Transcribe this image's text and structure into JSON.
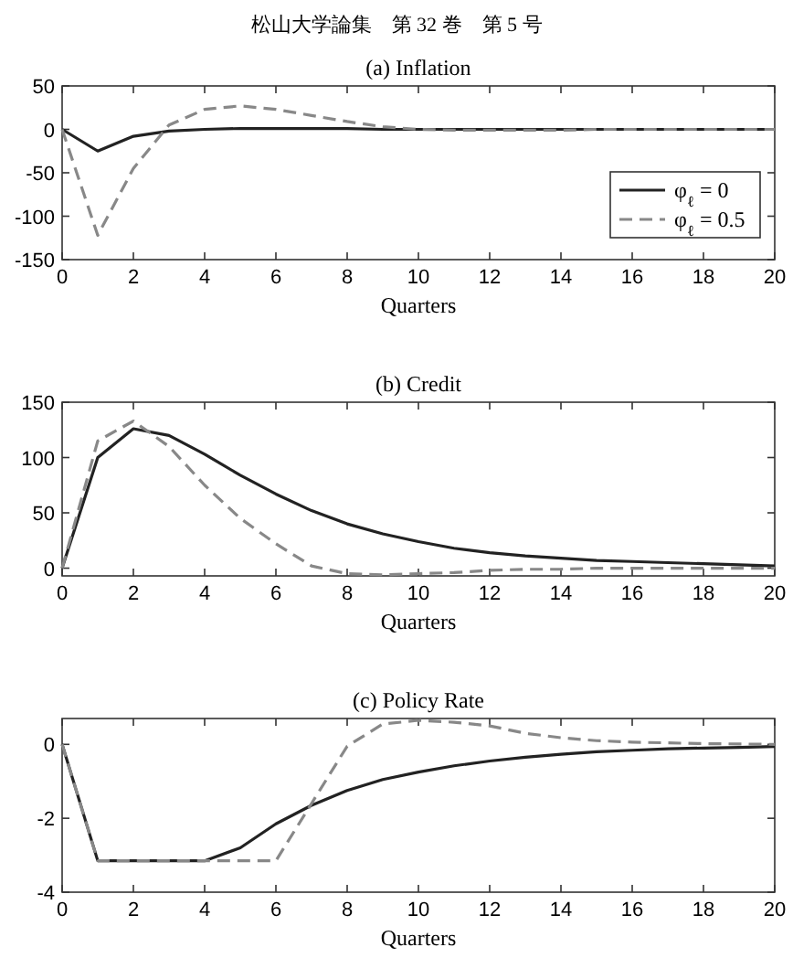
{
  "chart_data": [
    {
      "type": "line",
      "title": "(a) Inflation",
      "xlabel": "Quarters",
      "annotations": [
        "松山大学論集　第 32 巻　第 5 号"
      ],
      "x": [
        0,
        1,
        2,
        3,
        4,
        5,
        6,
        7,
        8,
        9,
        10,
        11,
        12,
        13,
        14,
        15,
        16,
        17,
        18,
        19,
        20
      ],
      "xlim": [
        0,
        20
      ],
      "xticks": [
        0,
        2,
        4,
        6,
        8,
        10,
        12,
        14,
        16,
        18,
        20
      ],
      "ylim": [
        -150,
        50
      ],
      "yticks": [
        -150,
        -100,
        -50,
        0,
        50
      ],
      "legend": "bottom right",
      "grid": false,
      "series": [
        {
          "name": "φ$_{ℓ}$ = 0",
          "color": "#222222",
          "line_style": "solid",
          "values": [
            0,
            -25,
            -8,
            -2,
            0,
            1,
            1,
            1,
            1,
            0,
            0,
            0,
            0,
            0,
            0,
            0,
            0,
            0,
            0,
            0,
            0
          ]
        },
        {
          "name": "φ$_{ℓ}$ = 0.5",
          "color": "#888888",
          "line_style": "dashed",
          "values": [
            0,
            -122,
            -45,
            5,
            23,
            27,
            23,
            16,
            9,
            3,
            0,
            -1,
            -1,
            -1,
            -1,
            0,
            0,
            0,
            0,
            0,
            0
          ]
        }
      ]
    },
    {
      "type": "line",
      "title": "(b) Credit",
      "xlabel": "Quarters",
      "x": [
        0,
        1,
        2,
        3,
        4,
        5,
        6,
        7,
        8,
        9,
        10,
        11,
        12,
        13,
        14,
        15,
        16,
        17,
        18,
        19,
        20
      ],
      "xlim": [
        0,
        20
      ],
      "xticks": [
        0,
        2,
        4,
        6,
        8,
        10,
        12,
        14,
        16,
        18,
        20
      ],
      "ylim": [
        -7,
        150
      ],
      "yticks": [
        0,
        50,
        100,
        150
      ],
      "grid": false,
      "series": [
        {
          "color": "#222222",
          "line_style": "solid",
          "values": [
            0,
            100,
            126,
            120,
            103,
            84,
            67,
            52,
            40,
            31,
            24,
            18,
            14,
            11,
            9,
            7,
            6,
            5,
            4,
            3,
            2
          ]
        },
        {
          "color": "#888888",
          "line_style": "dashed",
          "values": [
            0,
            115,
            133,
            110,
            75,
            45,
            22,
            2,
            -5,
            -6,
            -5,
            -4,
            -2,
            -1,
            -1,
            0,
            0,
            0,
            0,
            0,
            0
          ]
        }
      ]
    },
    {
      "type": "line",
      "title": "(c) Policy Rate",
      "xlabel": "Quarters",
      "x": [
        0,
        1,
        2,
        3,
        4,
        5,
        6,
        7,
        8,
        9,
        10,
        11,
        12,
        13,
        14,
        15,
        16,
        17,
        18,
        19,
        20
      ],
      "xlim": [
        0,
        20
      ],
      "xticks": [
        0,
        2,
        4,
        6,
        8,
        10,
        12,
        14,
        16,
        18,
        20
      ],
      "ylim": [
        -4,
        0.7
      ],
      "yticks": [
        -4,
        -2,
        0
      ],
      "grid": false,
      "series": [
        {
          "color": "#222222",
          "line_style": "solid",
          "values": [
            0,
            -3.15,
            -3.15,
            -3.15,
            -3.15,
            -2.8,
            -2.15,
            -1.65,
            -1.25,
            -0.95,
            -0.75,
            -0.58,
            -0.45,
            -0.35,
            -0.27,
            -0.2,
            -0.16,
            -0.12,
            -0.1,
            -0.08,
            -0.06
          ]
        },
        {
          "color": "#888888",
          "line_style": "dashed",
          "values": [
            0,
            -3.15,
            -3.15,
            -3.15,
            -3.15,
            -3.15,
            -3.15,
            -1.6,
            -0.05,
            0.55,
            0.65,
            0.6,
            0.5,
            0.3,
            0.18,
            0.1,
            0.06,
            0.04,
            0.02,
            0.01,
            0
          ]
        }
      ]
    }
  ]
}
